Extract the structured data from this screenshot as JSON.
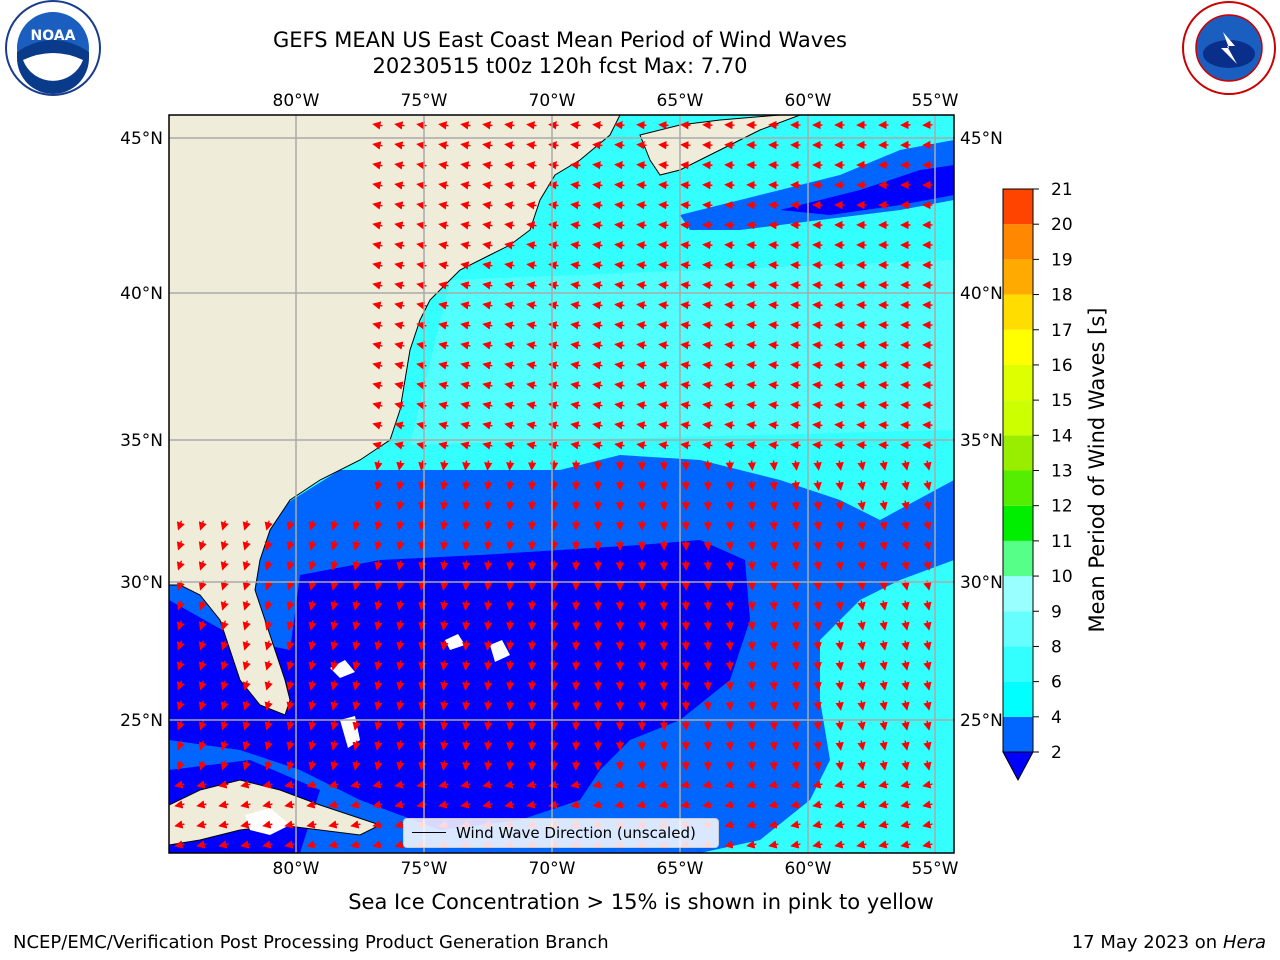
{
  "title": {
    "line1": "GEFS MEAN US East Coast Mean Period of Wind Waves",
    "line2": "20230515 t00z 120h fcst   Max: 7.70"
  },
  "logos": {
    "left": "NOAA",
    "right": "NATIONAL WEATHER SERVICE"
  },
  "map": {
    "lon_labels": [
      "80°W",
      "75°W",
      "70°W",
      "65°W",
      "60°W",
      "55°W"
    ],
    "lat_labels": [
      "45°N",
      "40°N",
      "35°N",
      "30°N",
      "25°N"
    ],
    "legend_text": "Wind Wave Direction (unscaled)",
    "arrow_color": "#ff0000",
    "land_color": "#efedd9"
  },
  "colorbar": {
    "label": "Mean Period of Wind Waves [s]",
    "ticks": [
      "2",
      "4",
      "6",
      "8",
      "9",
      "10",
      "11",
      "12",
      "13",
      "14",
      "15",
      "16",
      "17",
      "18",
      "19",
      "20",
      "21"
    ],
    "colors": [
      "#0066ff",
      "#00ffff",
      "#33ffff",
      "#66ffff",
      "#99ffff",
      "#55ff88",
      "#00ee00",
      "#55ee00",
      "#99ee00",
      "#ccff00",
      "#ddff00",
      "#ffff00",
      "#ffdd00",
      "#ffaa00",
      "#ff8800",
      "#ff4400",
      "#ff0000"
    ],
    "under_color": "#0000ff"
  },
  "notes": {
    "sea_ice": "Sea Ice Concentration > 15% is shown in pink to yellow",
    "footer_left": "NCEP/EMC/Verification Post Processing Product Generation Branch",
    "footer_date": "17 May 2023 on",
    "footer_host": "Hera"
  }
}
